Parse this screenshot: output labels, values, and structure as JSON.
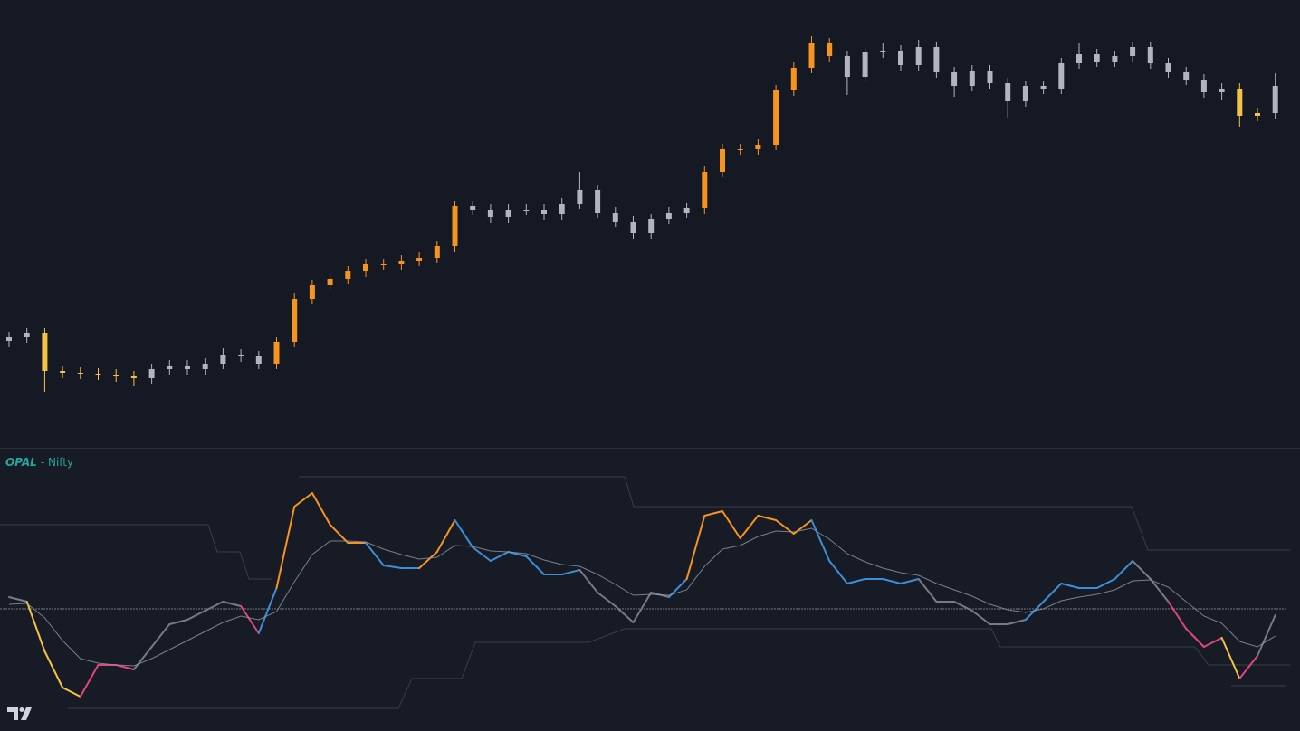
{
  "chart_data": [
    {
      "type": "candlestick",
      "ylim": [
        0,
        495
      ],
      "open": [
        118,
        122,
        127,
        85,
        83,
        82,
        81,
        79,
        77,
        87,
        91,
        87,
        93,
        103,
        101,
        93,
        117,
        165,
        180,
        187,
        195,
        203,
        203,
        207,
        210,
        223,
        267,
        263,
        255,
        263,
        263,
        258,
        270,
        285,
        260,
        250,
        237,
        253,
        260,
        265,
        305,
        330,
        330,
        335,
        395,
        420,
        447,
        433,
        410,
        437,
        439,
        423,
        443,
        415,
        400,
        417,
        403,
        383,
        400,
        397,
        425,
        435,
        427,
        433,
        443,
        425,
        415,
        407,
        393,
        397,
        367,
        370
      ],
      "high": [
        128,
        133,
        133,
        91,
        89,
        88,
        87,
        85,
        93,
        97,
        97,
        99,
        110,
        109,
        107,
        123,
        171,
        186,
        193,
        201,
        209,
        209,
        213,
        216,
        229,
        273,
        273,
        269,
        269,
        269,
        269,
        276,
        305,
        291,
        266,
        256,
        259,
        266,
        271,
        311,
        336,
        336,
        341,
        401,
        426,
        455,
        453,
        439,
        443,
        447,
        445,
        451,
        449,
        421,
        423,
        423,
        409,
        406,
        406,
        431,
        447,
        441,
        439,
        449,
        449,
        431,
        421,
        413,
        403,
        403,
        376,
        414
      ],
      "low": [
        112,
        116,
        62,
        77,
        76,
        75,
        73,
        68,
        71,
        81,
        81,
        81,
        87,
        95,
        87,
        87,
        111,
        159,
        174,
        181,
        189,
        197,
        197,
        201,
        204,
        217,
        257,
        249,
        249,
        257,
        252,
        252,
        264,
        254,
        244,
        231,
        231,
        247,
        254,
        259,
        299,
        324,
        324,
        329,
        389,
        414,
        427,
        390,
        404,
        431,
        417,
        417,
        409,
        388,
        394,
        397,
        365,
        377,
        391,
        391,
        419,
        421,
        421,
        427,
        419,
        409,
        401,
        387,
        385,
        355,
        361,
        364
      ],
      "close": [
        122,
        127,
        85,
        83,
        82,
        81,
        79,
        77,
        87,
        91,
        87,
        93,
        103,
        101,
        93,
        117,
        165,
        180,
        187,
        195,
        203,
        203,
        207,
        210,
        223,
        267,
        263,
        255,
        263,
        263,
        258,
        270,
        285,
        260,
        250,
        237,
        253,
        260,
        265,
        305,
        330,
        330,
        335,
        395,
        420,
        447,
        433,
        410,
        437,
        439,
        423,
        443,
        415,
        400,
        417,
        403,
        383,
        400,
        397,
        425,
        435,
        427,
        433,
        443,
        425,
        415,
        407,
        393,
        397,
        367,
        370,
        400
      ],
      "colors": [
        "#b2b5be",
        "#b2b5be",
        "#f5c242",
        "#f5c242",
        "#f5c242",
        "#f5c242",
        "#f5c242",
        "#f5c242",
        "#b2b5be",
        "#b2b5be",
        "#b2b5be",
        "#b2b5be",
        "#b2b5be",
        "#b2b5be",
        "#b2b5be",
        "#f7941d",
        "#f7941d",
        "#f7941d",
        "#f7941d",
        "#f7941d",
        "#f7941d",
        "#f7941d",
        "#f7941d",
        "#f7941d",
        "#f7941d",
        "#f7941d",
        "#b2b5be",
        "#b2b5be",
        "#b2b5be",
        "#b2b5be",
        "#b2b5be",
        "#b2b5be",
        "#b2b5be",
        "#b2b5be",
        "#b2b5be",
        "#b2b5be",
        "#b2b5be",
        "#b2b5be",
        "#b2b5be",
        "#f7941d",
        "#f7941d",
        "#f7941d",
        "#f7941d",
        "#f7941d",
        "#f7941d",
        "#f7941d",
        "#f7941d",
        "#b2b5be",
        "#b2b5be",
        "#b2b5be",
        "#b2b5be",
        "#b2b5be",
        "#b2b5be",
        "#b2b5be",
        "#b2b5be",
        "#b2b5be",
        "#b2b5be",
        "#b2b5be",
        "#b2b5be",
        "#b2b5be",
        "#b2b5be",
        "#b2b5be",
        "#b2b5be",
        "#b2b5be",
        "#b2b5be",
        "#b2b5be",
        "#b2b5be",
        "#b2b5be",
        "#b2b5be",
        "#f5c242",
        "#f5c242",
        "#b2b5be"
      ]
    },
    {
      "type": "line",
      "title": "OPAL",
      "subtitle": "- Nifty",
      "ylim": [
        -135,
        176
      ],
      "series": [
        {
          "values": [
            13,
            8,
            -47,
            -87,
            -97,
            -62,
            -62,
            -67,
            -42,
            -17,
            -12,
            -2,
            8,
            3,
            -27,
            23,
            113,
            128,
            93,
            73,
            73,
            48,
            45,
            45,
            63,
            98,
            68,
            53,
            63,
            58,
            38,
            38,
            43,
            18,
            3,
            -15,
            18,
            13,
            33,
            103,
            108,
            78,
            103,
            98,
            83,
            98,
            53,
            28,
            33,
            33,
            28,
            33,
            8,
            8,
            -2,
            -17,
            -17,
            -12,
            8,
            28,
            23,
            23,
            33,
            53,
            33,
            8,
            -22,
            -42,
            -32,
            -77,
            -52,
            -7
          ],
          "colors": [
            "#787b86",
            "#787b86",
            "#f5c242",
            "#f5c242",
            "#f5c242",
            "#e0467c",
            "#e0467c",
            "#e0467c",
            "#787b86",
            "#787b86",
            "#787b86",
            "#787b86",
            "#787b86",
            "#787b86",
            "#e0467c",
            "#3d8ed6",
            "#f7941d",
            "#f7941d",
            "#f7941d",
            "#f7941d",
            "#f7941d",
            "#3d8ed6",
            "#3d8ed6",
            "#3d8ed6",
            "#f7941d",
            "#f7941d",
            "#3d8ed6",
            "#3d8ed6",
            "#3d8ed6",
            "#3d8ed6",
            "#3d8ed6",
            "#3d8ed6",
            "#3d8ed6",
            "#787b86",
            "#787b86",
            "#787b86",
            "#787b86",
            "#787b86",
            "#3d8ed6",
            "#f7941d",
            "#f7941d",
            "#f7941d",
            "#f7941d",
            "#f7941d",
            "#f7941d",
            "#f7941d",
            "#3d8ed6",
            "#3d8ed6",
            "#3d8ed6",
            "#3d8ed6",
            "#3d8ed6",
            "#3d8ed6",
            "#787b86",
            "#787b86",
            "#787b86",
            "#787b86",
            "#787b86",
            "#787b86",
            "#3d8ed6",
            "#3d8ed6",
            "#3d8ed6",
            "#3d8ed6",
            "#3d8ed6",
            "#3d8ed6",
            "#787b86",
            "#787b86",
            "#e0467c",
            "#e0467c",
            "#e0467c",
            "#f5c242",
            "#e0467c",
            "#787b86"
          ]
        },
        {
          "values": [
            5,
            6,
            -10,
            -35,
            -55,
            -60,
            -62,
            -63,
            -55,
            -45,
            -35,
            -25,
            -15,
            -8,
            -12,
            -3,
            30,
            60,
            75,
            75,
            74,
            66,
            60,
            55,
            57,
            70,
            69,
            64,
            63,
            61,
            54,
            49,
            47,
            38,
            27,
            15,
            16,
            15,
            21,
            47,
            66,
            70,
            80,
            86,
            85,
            89,
            77,
            61,
            52,
            45,
            40,
            37,
            28,
            21,
            14,
            5,
            -1,
            -4,
            0,
            9,
            13,
            16,
            21,
            31,
            32,
            24,
            8,
            -8,
            -16,
            -36,
            -42,
            -30
          ],
          "color": "#9598a1"
        }
      ]
    }
  ]
}
